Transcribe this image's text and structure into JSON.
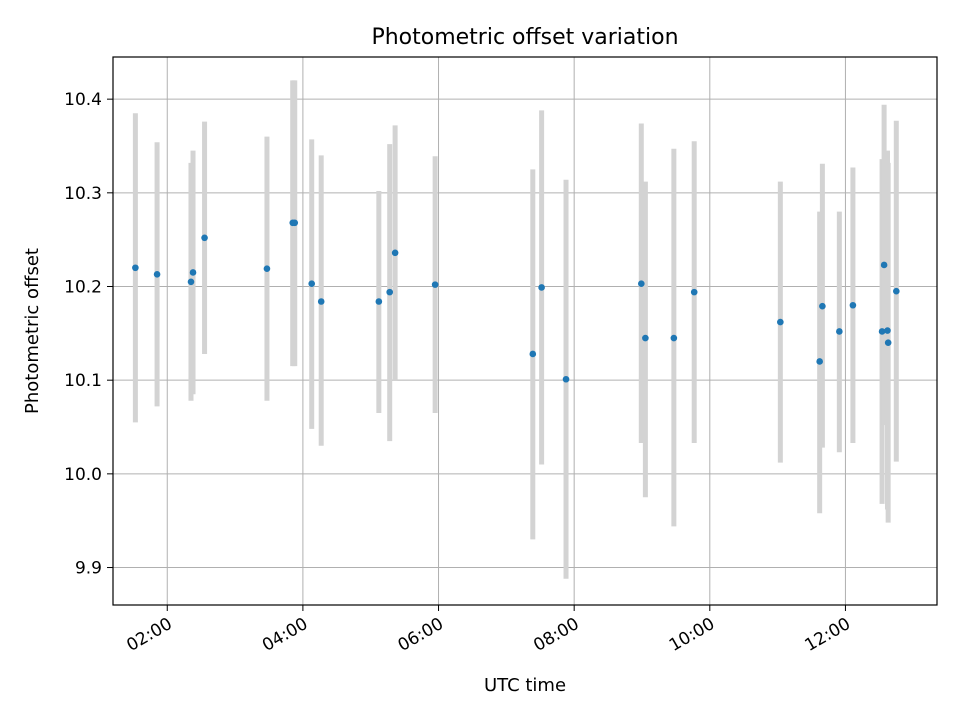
{
  "chart_data": {
    "type": "scatter",
    "title": "Photometric offset variation",
    "xlabel": "UTC time",
    "ylabel": "Photometric offset",
    "x_unit": "UTC hour of day",
    "xlim": [
      1.2,
      13.35
    ],
    "ylim": [
      9.86,
      10.445
    ],
    "grid": true,
    "x_ticks": [
      {
        "value": 2,
        "label": "02:00"
      },
      {
        "value": 4,
        "label": "04:00"
      },
      {
        "value": 6,
        "label": "06:00"
      },
      {
        "value": 8,
        "label": "08:00"
      },
      {
        "value": 10,
        "label": "10:00"
      },
      {
        "value": 12,
        "label": "12:00"
      }
    ],
    "y_ticks": [
      {
        "value": 9.9,
        "label": "9.9"
      },
      {
        "value": 10.0,
        "label": "10.0"
      },
      {
        "value": 10.1,
        "label": "10.1"
      },
      {
        "value": 10.2,
        "label": "10.2"
      },
      {
        "value": 10.3,
        "label": "10.3"
      },
      {
        "value": 10.4,
        "label": "10.4"
      }
    ],
    "colors": {
      "point": "#1f77b4",
      "errorbar": "#d3d3d3",
      "grid": "#b0b0b0"
    },
    "points": [
      {
        "x": 1.53,
        "y": 10.22,
        "ylow": 10.055,
        "yhigh": 10.385
      },
      {
        "x": 1.85,
        "y": 10.213,
        "ylow": 10.072,
        "yhigh": 10.354
      },
      {
        "x": 2.35,
        "y": 10.205,
        "ylow": 10.078,
        "yhigh": 10.332
      },
      {
        "x": 2.38,
        "y": 10.215,
        "ylow": 10.085,
        "yhigh": 10.345
      },
      {
        "x": 2.55,
        "y": 10.252,
        "ylow": 10.128,
        "yhigh": 10.376
      },
      {
        "x": 3.47,
        "y": 10.219,
        "ylow": 10.078,
        "yhigh": 10.36
      },
      {
        "x": 3.85,
        "y": 10.268,
        "ylow": 10.115,
        "yhigh": 10.42
      },
      {
        "x": 3.88,
        "y": 10.268,
        "ylow": 10.115,
        "yhigh": 10.42
      },
      {
        "x": 4.13,
        "y": 10.203,
        "ylow": 10.048,
        "yhigh": 10.357
      },
      {
        "x": 4.27,
        "y": 10.184,
        "ylow": 10.03,
        "yhigh": 10.34
      },
      {
        "x": 5.12,
        "y": 10.184,
        "ylow": 10.065,
        "yhigh": 10.302
      },
      {
        "x": 5.28,
        "y": 10.194,
        "ylow": 10.035,
        "yhigh": 10.352
      },
      {
        "x": 5.36,
        "y": 10.236,
        "ylow": 10.1,
        "yhigh": 10.372
      },
      {
        "x": 5.95,
        "y": 10.202,
        "ylow": 10.065,
        "yhigh": 10.339
      },
      {
        "x": 7.39,
        "y": 10.128,
        "ylow": 9.93,
        "yhigh": 10.325
      },
      {
        "x": 7.52,
        "y": 10.199,
        "ylow": 10.01,
        "yhigh": 10.388
      },
      {
        "x": 7.88,
        "y": 10.101,
        "ylow": 9.888,
        "yhigh": 10.314
      },
      {
        "x": 8.99,
        "y": 10.203,
        "ylow": 10.033,
        "yhigh": 10.374
      },
      {
        "x": 9.05,
        "y": 10.145,
        "ylow": 9.975,
        "yhigh": 10.312
      },
      {
        "x": 9.47,
        "y": 10.145,
        "ylow": 9.944,
        "yhigh": 10.347
      },
      {
        "x": 9.77,
        "y": 10.194,
        "ylow": 10.033,
        "yhigh": 10.355
      },
      {
        "x": 11.04,
        "y": 10.162,
        "ylow": 10.012,
        "yhigh": 10.312
      },
      {
        "x": 11.62,
        "y": 10.12,
        "ylow": 9.958,
        "yhigh": 10.28
      },
      {
        "x": 11.66,
        "y": 10.179,
        "ylow": 10.028,
        "yhigh": 10.331
      },
      {
        "x": 11.91,
        "y": 10.152,
        "ylow": 10.023,
        "yhigh": 10.28
      },
      {
        "x": 12.11,
        "y": 10.18,
        "ylow": 10.033,
        "yhigh": 10.327
      },
      {
        "x": 12.54,
        "y": 10.152,
        "ylow": 9.968,
        "yhigh": 10.336
      },
      {
        "x": 12.57,
        "y": 10.223,
        "ylow": 10.052,
        "yhigh": 10.394
      },
      {
        "x": 12.62,
        "y": 10.153,
        "ylow": 9.962,
        "yhigh": 10.345
      },
      {
        "x": 12.63,
        "y": 10.14,
        "ylow": 9.948,
        "yhigh": 10.332
      },
      {
        "x": 12.75,
        "y": 10.195,
        "ylow": 10.013,
        "yhigh": 10.377
      }
    ]
  }
}
